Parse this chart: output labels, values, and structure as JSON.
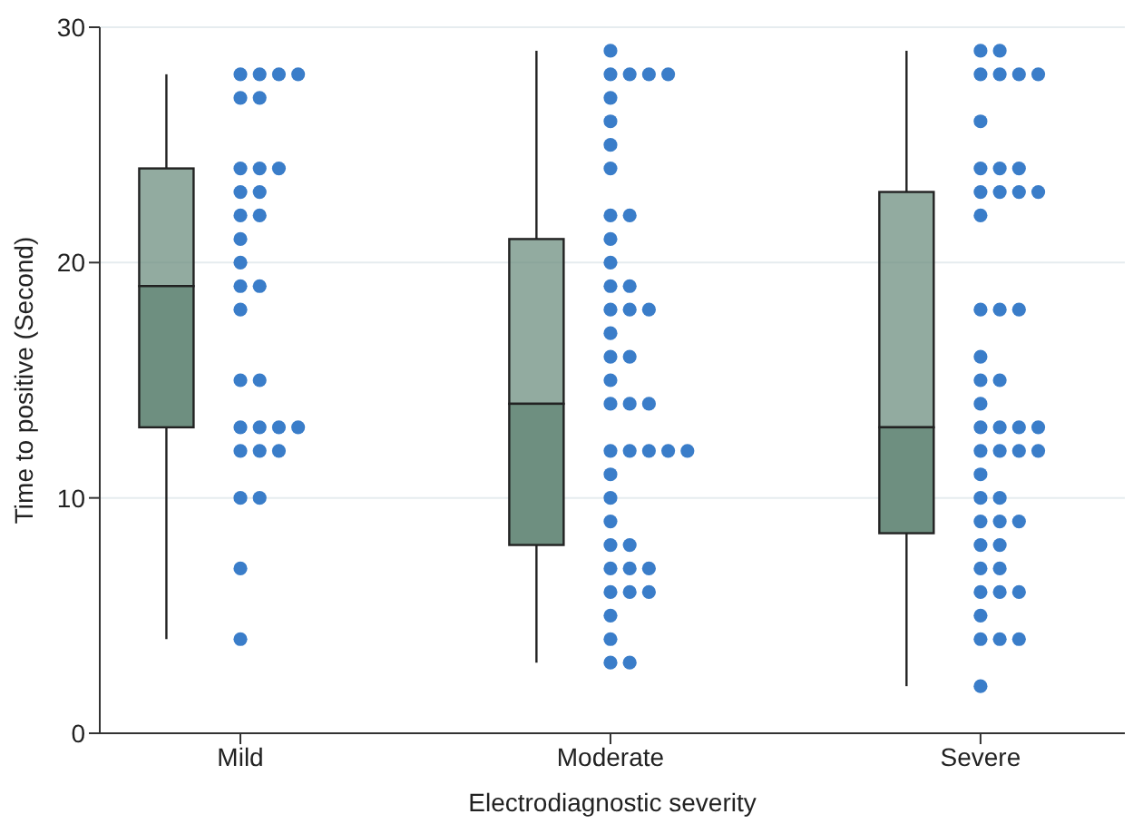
{
  "chart_data": {
    "type": "box",
    "xlabel": "Electrodiagnostic severity",
    "ylabel": "Time to positive (Second)",
    "categories": [
      "Mild",
      "Moderate",
      "Severe"
    ],
    "ylim": [
      0,
      30
    ],
    "yticks": [
      0,
      10,
      20,
      30
    ],
    "grid": "y",
    "legend": false,
    "series": [
      {
        "type": "box",
        "color": "#6e8f80",
        "boxes": [
          {
            "low": 4,
            "q1": 13,
            "median": 19,
            "q3": 24,
            "high": 28
          },
          {
            "low": 3,
            "q1": 8,
            "median": 14,
            "q3": 21,
            "high": 29
          },
          {
            "low": 2,
            "q1": 8.5,
            "median": 13,
            "q3": 23,
            "high": 29
          }
        ]
      },
      {
        "type": "scatter",
        "color": "#3a7dc9",
        "marker": "circle",
        "x": [
          "Mild",
          "Mild",
          "Mild",
          "Mild",
          "Mild",
          "Mild",
          "Mild",
          "Mild",
          "Mild",
          "Mild",
          "Mild",
          "Mild",
          "Mild",
          "Mild",
          "Mild",
          "Mild",
          "Mild",
          "Mild",
          "Mild",
          "Mild",
          "Mild",
          "Mild",
          "Mild",
          "Mild",
          "Mild",
          "Mild",
          "Mild",
          "Mild",
          "Mild",
          "Mild",
          "Mild",
          "Moderate",
          "Moderate",
          "Moderate",
          "Moderate",
          "Moderate",
          "Moderate",
          "Moderate",
          "Moderate",
          "Moderate",
          "Moderate",
          "Moderate",
          "Moderate",
          "Moderate",
          "Moderate",
          "Moderate",
          "Moderate",
          "Moderate",
          "Moderate",
          "Moderate",
          "Moderate",
          "Moderate",
          "Moderate",
          "Moderate",
          "Moderate",
          "Moderate",
          "Moderate",
          "Moderate",
          "Moderate",
          "Moderate",
          "Moderate",
          "Moderate",
          "Moderate",
          "Moderate",
          "Moderate",
          "Moderate",
          "Moderate",
          "Moderate",
          "Moderate",
          "Moderate",
          "Moderate",
          "Moderate",
          "Moderate",
          "Moderate",
          "Moderate",
          "Moderate",
          "Severe",
          "Severe",
          "Severe",
          "Severe",
          "Severe",
          "Severe",
          "Severe",
          "Severe",
          "Severe",
          "Severe",
          "Severe",
          "Severe",
          "Severe",
          "Severe",
          "Severe",
          "Severe",
          "Severe",
          "Severe",
          "Severe",
          "Severe",
          "Severe",
          "Severe",
          "Severe",
          "Severe",
          "Severe",
          "Severe",
          "Severe",
          "Severe",
          "Severe",
          "Severe",
          "Severe",
          "Severe",
          "Severe",
          "Severe",
          "Severe",
          "Severe",
          "Severe",
          "Severe",
          "Severe",
          "Severe",
          "Severe",
          "Severe",
          "Severe",
          "Severe",
          "Severe",
          "Severe",
          "Severe",
          "Severe"
        ],
        "values": [
          28,
          28,
          28,
          28,
          27,
          27,
          24,
          24,
          24,
          23,
          23,
          22,
          22,
          21,
          20,
          19,
          19,
          18,
          15,
          15,
          13,
          13,
          13,
          13,
          12,
          12,
          12,
          10,
          10,
          7,
          4,
          29,
          28,
          28,
          28,
          28,
          27,
          26,
          25,
          24,
          22,
          22,
          21,
          20,
          19,
          19,
          18,
          18,
          18,
          17,
          16,
          16,
          15,
          14,
          14,
          14,
          12,
          12,
          12,
          12,
          12,
          11,
          10,
          9,
          8,
          8,
          7,
          7,
          7,
          6,
          6,
          6,
          5,
          4,
          3,
          3,
          29,
          29,
          28,
          28,
          28,
          28,
          26,
          24,
          24,
          24,
          23,
          23,
          23,
          23,
          22,
          18,
          18,
          18,
          16,
          15,
          15,
          14,
          13,
          13,
          13,
          13,
          12,
          12,
          12,
          12,
          11,
          10,
          10,
          9,
          9,
          9,
          8,
          8,
          7,
          7,
          6,
          6,
          6,
          5,
          4,
          4,
          4,
          2
        ]
      }
    ]
  }
}
